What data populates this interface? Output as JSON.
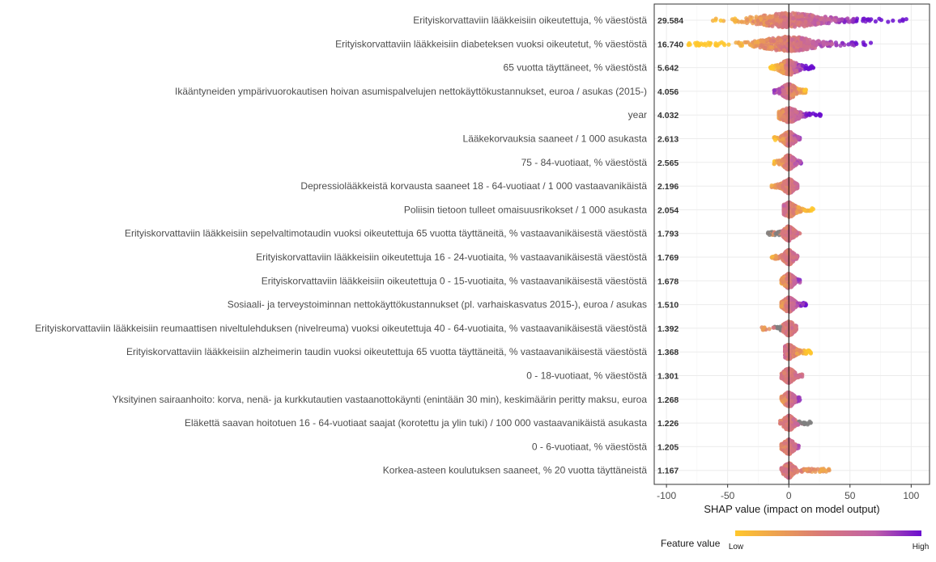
{
  "chart_data": {
    "type": "scatter",
    "subtype": "shap-summary-beeswarm",
    "xlabel": "SHAP value (impact on model output)",
    "xlim": [
      -110,
      115
    ],
    "xticks": [
      -100,
      -50,
      0,
      50,
      100
    ],
    "grid": true,
    "legend": {
      "title": "Feature value",
      "low": "Low",
      "high": "High",
      "placement": "bottom-right",
      "colors": [
        "#FFC72C",
        "#DA7B75",
        "#C060A8",
        "#6A0DCF"
      ]
    },
    "na_color": "#7f7f7f",
    "features": [
      {
        "name": "Erityiskorvattaviin lääkkeisiin oikeutettuja, % väestöstä",
        "mean_abs": "29.584",
        "min": -62,
        "max": 96,
        "q_low": -25,
        "q_high": 55,
        "corr": 1
      },
      {
        "name": "Erityiskorvattaviin lääkkeisiin diabeteksen vuoksi oikeutetut, % väestöstä",
        "mean_abs": "16.740",
        "min": -82,
        "max": 67,
        "q_low": -30,
        "q_high": 35,
        "corr": 1
      },
      {
        "name": "65 vuotta täyttäneet, % väestöstä",
        "mean_abs": "5.642",
        "min": -15,
        "max": 20,
        "q_low": -8,
        "q_high": 10,
        "corr": 1
      },
      {
        "name": "Ikääntyneiden ympärivuorokautisen hoivan asumispalvelujen nettokäyttökustannukset, euroa / asukas (2015-)",
        "mean_abs": "4.056",
        "min": -12,
        "max": 14,
        "q_low": -6,
        "q_high": 7,
        "corr": -0.6
      },
      {
        "name": "year",
        "mean_abs": "4.032",
        "min": -8,
        "max": 26,
        "q_low": -5,
        "q_high": 14,
        "corr": 1
      },
      {
        "name": "Lääkekorvauksia saaneet / 1 000 asukasta",
        "mean_abs": "2.613",
        "min": -12,
        "max": 9,
        "q_low": -4,
        "q_high": 5,
        "corr": 0.6
      },
      {
        "name": "75 - 84-vuotiaat, % väestöstä",
        "mean_abs": "2.565",
        "min": -12,
        "max": 10,
        "q_low": -4,
        "q_high": 5,
        "corr": 0.6
      },
      {
        "name": "Depressiolääkkeistä korvausta saaneet 18 - 64-vuotiaat / 1 000 vastaavanikäistä",
        "mean_abs": "2.196",
        "min": -14,
        "max": 7,
        "q_low": -5,
        "q_high": 4,
        "corr": 0.4
      },
      {
        "name": "Poliisin tietoon tulleet omaisuusrikokset / 1 000 asukasta",
        "mean_abs": "2.054",
        "min": -4,
        "max": 20,
        "q_low": -3,
        "q_high": 10,
        "corr": -0.8
      },
      {
        "name": "Erityiskorvattaviin lääkkeisiin sepelvaltimotaudin vuoksi oikeutettuja 65 vuotta täyttäneitä, % vastaavanikäisestä väestöstä",
        "mean_abs": "1.793",
        "min": -17,
        "max": 9,
        "q_low": -4,
        "q_high": 4,
        "corr": 0.2
      },
      {
        "name": "Erityiskorvattaviin lääkkeisiin oikeutettuja 16 - 24-vuotiaita, % vastaavanikäisestä väestöstä",
        "mean_abs": "1.769",
        "min": -14,
        "max": 7,
        "q_low": -4,
        "q_high": 4,
        "corr": 0.4
      },
      {
        "name": "Erityiskorvattaviin lääkkeisiin oikeutettuja 0 - 15-vuotiaita, % vastaavanikäisestä väestöstä",
        "mean_abs": "1.678",
        "min": -6,
        "max": 9,
        "q_low": -4,
        "q_high": 5,
        "corr": 0.5
      },
      {
        "name": "Sosiaali- ja terveystoiminnan nettokäyttökustannukset (pl. varhaiskasvatus 2015-), euroa / asukas",
        "mean_abs": "1.510",
        "min": -6,
        "max": 14,
        "q_low": -3,
        "q_high": 7,
        "corr": 0.7
      },
      {
        "name": "Erityiskorvattaviin lääkkeisiin reumaattisen niveltulehduksen (nivelreuma) vuoksi oikeutettuja 40 - 64-vuotiaita, % vastaavanikäisestä väestöstä",
        "mean_abs": "1.392",
        "min": -22,
        "max": 6,
        "q_low": -5,
        "q_high": 4,
        "corr": 0.3
      },
      {
        "name": "Erityiskorvattaviin lääkkeisiin alzheimerin taudin vuoksi oikeutettuja 65 vuotta täyttäneitä, % vastaavanikäisestä väestöstä",
        "mean_abs": "1.368",
        "min": -3,
        "max": 18,
        "q_low": -2,
        "q_high": 9,
        "corr": -0.7
      },
      {
        "name": "0 - 18-vuotiaat, % väestöstä",
        "mean_abs": "1.301",
        "min": -6,
        "max": 11,
        "q_low": -4,
        "q_high": 5,
        "corr": 0.1
      },
      {
        "name": "Yksityinen sairaanhoito: korva, nenä- ja kurkkutautien vastaanottokäynti (enintään 30 min), keskimäärin peritty maksu, euroa",
        "mean_abs": "1.268",
        "min": -6,
        "max": 9,
        "q_low": -4,
        "q_high": 5,
        "corr": 0.5
      },
      {
        "name": "Eläkettä saavan hoitotuen 16 - 64-vuotiaat saajat (korotettu ja ylin tuki) / 100 000 vastaavanikäistä asukasta",
        "mean_abs": "1.226",
        "min": -7,
        "max": 18,
        "q_low": -4,
        "q_high": 5,
        "corr": 0.3
      },
      {
        "name": "0 - 6-vuotiaat, % väestöstä",
        "mean_abs": "1.205",
        "min": -6,
        "max": 8,
        "q_low": -4,
        "q_high": 5,
        "corr": 0.3
      },
      {
        "name": "Korkea-asteen koulutuksen saaneet, % 20 vuotta täyttäneistä",
        "mean_abs": "1.167",
        "min": -6,
        "max": 33,
        "q_low": -3,
        "q_high": 6,
        "corr": -0.4
      }
    ]
  }
}
